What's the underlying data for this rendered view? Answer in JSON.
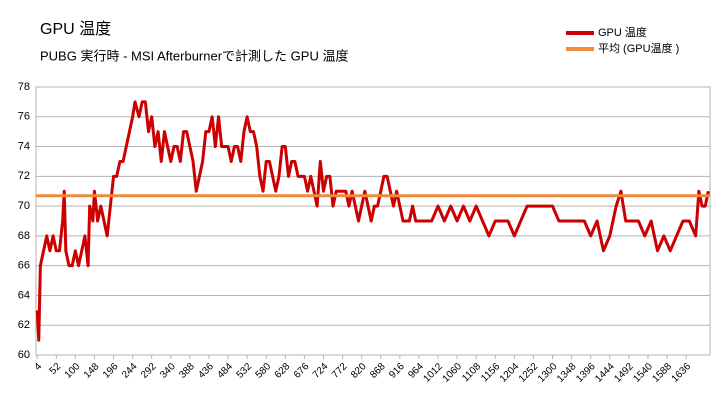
{
  "chart_data": {
    "type": "line",
    "title": "GPU 温度",
    "subtitle": "PUBG 実行時  - MSI Afterburnerで計測した GPU 温度",
    "xlim": [
      1,
      1696
    ],
    "ylim": [
      60,
      78
    ],
    "yticks": [
      60,
      62,
      64,
      66,
      68,
      70,
      72,
      74,
      76,
      78
    ],
    "xticks": [
      4,
      52,
      100,
      148,
      196,
      244,
      292,
      340,
      388,
      436,
      484,
      532,
      580,
      628,
      676,
      724,
      772,
      820,
      868,
      916,
      964,
      1012,
      1060,
      1108,
      1156,
      1204,
      1252,
      1300,
      1348,
      1396,
      1444,
      1492,
      1540,
      1588,
      1636
    ],
    "grid": true,
    "legend": "top-right",
    "series": [
      {
        "name": "GPU 温度",
        "color": "#cc0000",
        "x": [
          4,
          8,
          12,
          20,
          28,
          36,
          44,
          52,
          60,
          68,
          72,
          76,
          84,
          92,
          100,
          108,
          116,
          124,
          132,
          136,
          144,
          148,
          156,
          164,
          172,
          180,
          188,
          196,
          204,
          212,
          220,
          228,
          236,
          244,
          250,
          260,
          268,
          276,
          284,
          292,
          300,
          308,
          316,
          324,
          332,
          340,
          348,
          356,
          364,
          372,
          380,
          388,
          396,
          404,
          412,
          420,
          428,
          436,
          444,
          452,
          460,
          468,
          476,
          484,
          492,
          500,
          508,
          516,
          524,
          532,
          540,
          548,
          556,
          564,
          572,
          580,
          588,
          596,
          604,
          612,
          620,
          628,
          636,
          644,
          652,
          660,
          668,
          676,
          684,
          692,
          700,
          708,
          716,
          724,
          732,
          740,
          748,
          756,
          764,
          772,
          780,
          788,
          796,
          804,
          812,
          820,
          828,
          836,
          844,
          852,
          860,
          868,
          876,
          884,
          892,
          900,
          908,
          916,
          924,
          932,
          940,
          948,
          956,
          964,
          980,
          996,
          1012,
          1028,
          1044,
          1060,
          1076,
          1092,
          1108,
          1124,
          1140,
          1156,
          1172,
          1188,
          1204,
          1220,
          1236,
          1252,
          1268,
          1284,
          1300,
          1316,
          1332,
          1348,
          1364,
          1380,
          1396,
          1412,
          1428,
          1444,
          1460,
          1472,
          1484,
          1500,
          1516,
          1532,
          1548,
          1564,
          1580,
          1596,
          1612,
          1628,
          1644,
          1660,
          1668,
          1676,
          1684,
          1692
        ],
        "values": [
          63,
          61,
          66,
          67,
          68,
          67,
          68,
          67,
          67,
          69,
          71,
          67,
          66,
          66,
          67,
          66,
          67,
          68,
          66,
          70,
          69,
          71,
          69,
          70,
          69,
          68,
          70,
          72,
          72,
          73,
          73,
          74,
          75,
          76,
          77,
          76,
          77,
          77,
          75,
          76,
          74,
          75,
          73,
          75,
          74,
          73,
          74,
          74,
          73,
          75,
          75,
          74,
          73,
          71,
          72,
          73,
          75,
          75,
          76,
          74,
          76,
          74,
          74,
          74,
          73,
          74,
          74,
          73,
          75,
          76,
          75,
          75,
          74,
          72,
          71,
          73,
          73,
          72,
          71,
          72,
          74,
          74,
          72,
          73,
          73,
          72,
          72,
          72,
          71,
          72,
          71,
          70,
          73,
          71,
          72,
          72,
          70,
          71,
          71,
          71,
          71,
          70,
          71,
          70,
          69,
          70,
          71,
          70,
          69,
          70,
          70,
          71,
          72,
          72,
          71,
          70,
          71,
          70,
          69,
          69,
          69,
          70,
          69,
          69,
          69,
          69,
          70,
          69,
          70,
          69,
          70,
          69,
          70,
          69,
          68,
          69,
          69,
          69,
          68,
          69,
          70,
          70,
          70,
          70,
          70,
          69,
          69,
          69,
          69,
          69,
          68,
          69,
          67,
          68,
          70,
          71,
          69,
          69,
          69,
          68,
          69,
          67,
          68,
          67,
          68,
          69,
          69,
          68,
          71,
          70,
          70,
          71
        ]
      },
      {
        "name": "平均 (GPU温度 )",
        "color": "#f08a3c",
        "x": [
          1,
          1696
        ],
        "values": [
          70.7,
          70.7
        ]
      }
    ]
  }
}
